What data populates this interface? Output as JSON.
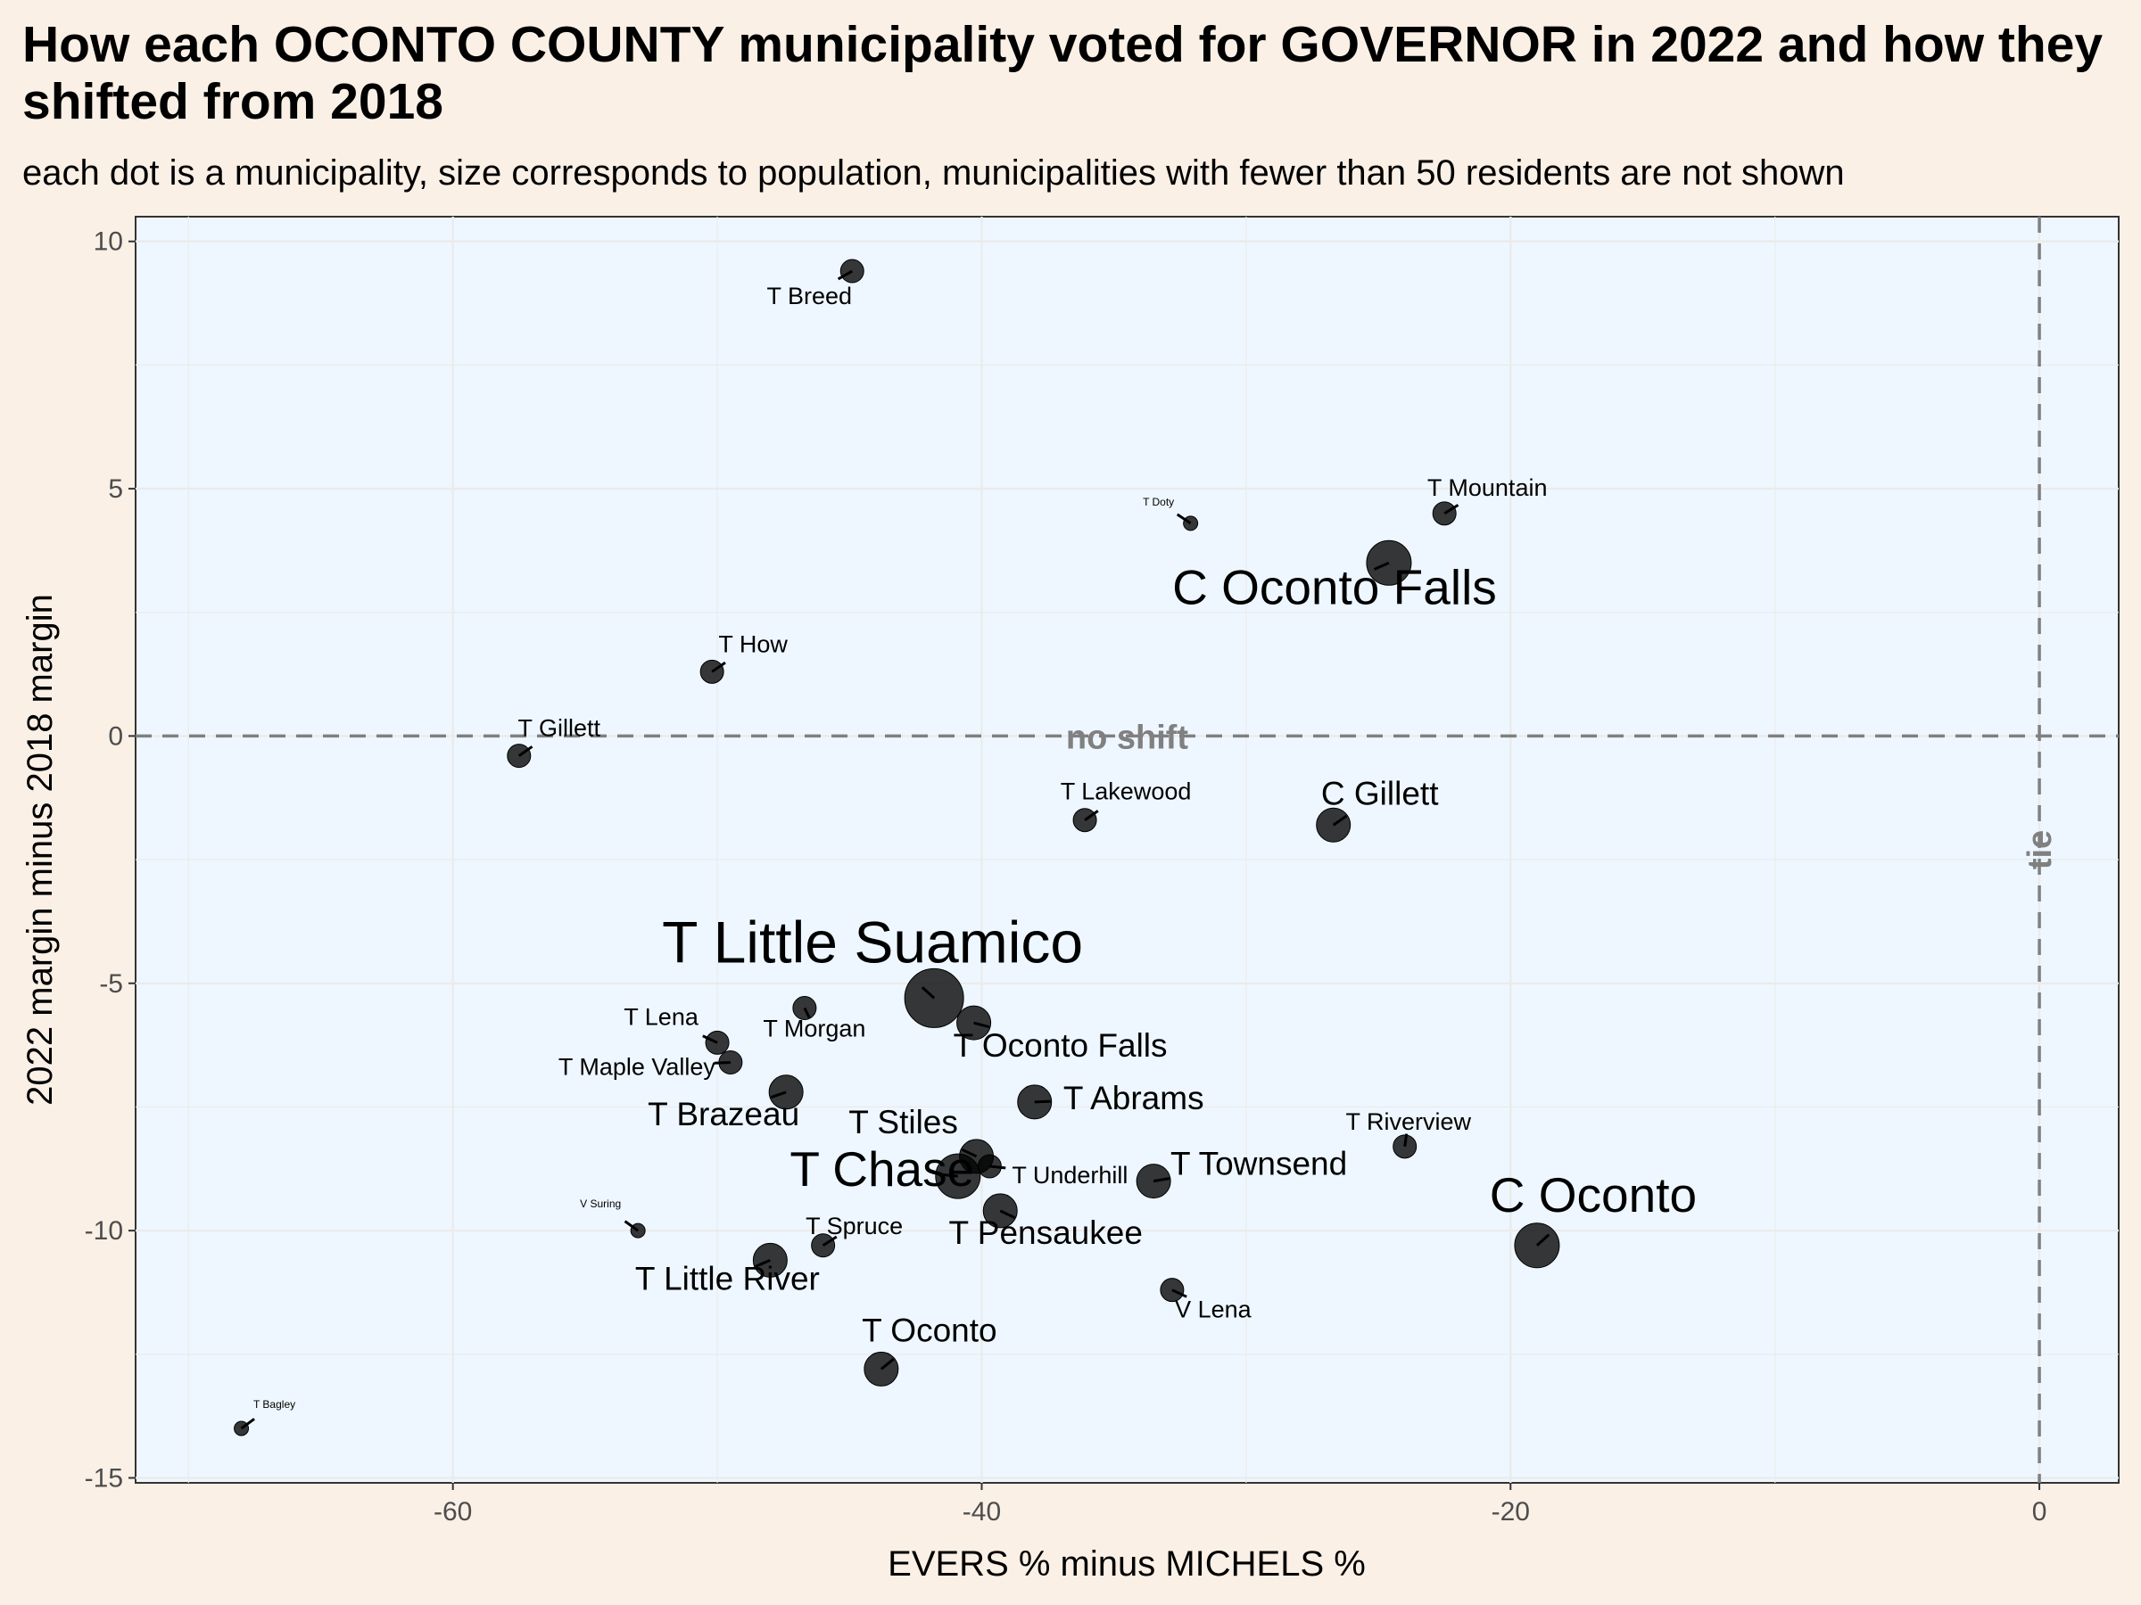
{
  "chart_data": {
    "type": "scatter",
    "title": "How each OCONTO COUNTY municipality voted for GOVERNOR in 2022 and how they shifted from 2018",
    "subtitle": "each dot is a municipality, size corresponds to population, municipalities with fewer than 50 residents are not shown",
    "xlabel": "EVERS % minus MICHELS %",
    "ylabel": "2022 margin minus 2018 margin",
    "xlim": [
      -72,
      3
    ],
    "ylim": [
      -15.1,
      10.5
    ],
    "xticks": [
      -60,
      -40,
      -20,
      0
    ],
    "yticks": [
      10,
      5,
      0,
      -5,
      -10,
      -15
    ],
    "grid": true,
    "reference_lines": [
      {
        "axis": "y",
        "value": 0,
        "label": "no shift"
      },
      {
        "axis": "x",
        "value": 0,
        "label": "tie"
      }
    ],
    "points": [
      {
        "name": "T Breed",
        "x": -44.9,
        "y": 9.4,
        "size": "small"
      },
      {
        "name": "T Doty",
        "x": -32.1,
        "y": 4.3,
        "size": "tiny"
      },
      {
        "name": "T Mountain",
        "x": -22.5,
        "y": 4.5,
        "size": "small"
      },
      {
        "name": "C Oconto Falls",
        "x": -24.6,
        "y": 3.5,
        "size": "large"
      },
      {
        "name": "T How",
        "x": -50.2,
        "y": 1.3,
        "size": "small"
      },
      {
        "name": "T Gillett",
        "x": -57.5,
        "y": -0.4,
        "size": "small"
      },
      {
        "name": "T Lakewood",
        "x": -36.1,
        "y": -1.7,
        "size": "small"
      },
      {
        "name": "C Gillett",
        "x": -26.7,
        "y": -1.8,
        "size": "medium"
      },
      {
        "name": "T Little Suamico",
        "x": -41.8,
        "y": -5.3,
        "size": "xlarge"
      },
      {
        "name": "T Oconto Falls",
        "x": -40.3,
        "y": -5.8,
        "size": "medium"
      },
      {
        "name": "T Morgan",
        "x": -46.7,
        "y": -5.5,
        "size": "small"
      },
      {
        "name": "T Lena",
        "x": -50.0,
        "y": -6.2,
        "size": "small"
      },
      {
        "name": "T Maple Valley",
        "x": -49.5,
        "y": -6.6,
        "size": "small"
      },
      {
        "name": "T Brazeau",
        "x": -47.4,
        "y": -7.2,
        "size": "medium"
      },
      {
        "name": "T Abrams",
        "x": -38.0,
        "y": -7.4,
        "size": "medium"
      },
      {
        "name": "T Riverview",
        "x": -24.0,
        "y": -8.3,
        "size": "small"
      },
      {
        "name": "T Stiles",
        "x": -40.2,
        "y": -8.5,
        "size": "medium"
      },
      {
        "name": "T Chase",
        "x": -40.9,
        "y": -8.9,
        "size": "large"
      },
      {
        "name": "T Underhill",
        "x": -39.7,
        "y": -8.7,
        "size": "small"
      },
      {
        "name": "T Townsend",
        "x": -33.5,
        "y": -9.0,
        "size": "medium"
      },
      {
        "name": "T Pensaukee",
        "x": -39.3,
        "y": -9.6,
        "size": "medium"
      },
      {
        "name": "C Oconto",
        "x": -19.0,
        "y": -10.3,
        "size": "large"
      },
      {
        "name": "V Suring",
        "x": -53.0,
        "y": -10.0,
        "size": "tiny"
      },
      {
        "name": "T Spruce",
        "x": -46.0,
        "y": -10.3,
        "size": "small"
      },
      {
        "name": "T Little River",
        "x": -48.0,
        "y": -10.6,
        "size": "medium"
      },
      {
        "name": "V Lena",
        "x": -32.8,
        "y": -11.2,
        "size": "small"
      },
      {
        "name": "T Oconto",
        "x": -43.8,
        "y": -12.8,
        "size": "medium"
      },
      {
        "name": "T Bagley",
        "x": -68.0,
        "y": -14.0,
        "size": "tiny"
      }
    ]
  }
}
